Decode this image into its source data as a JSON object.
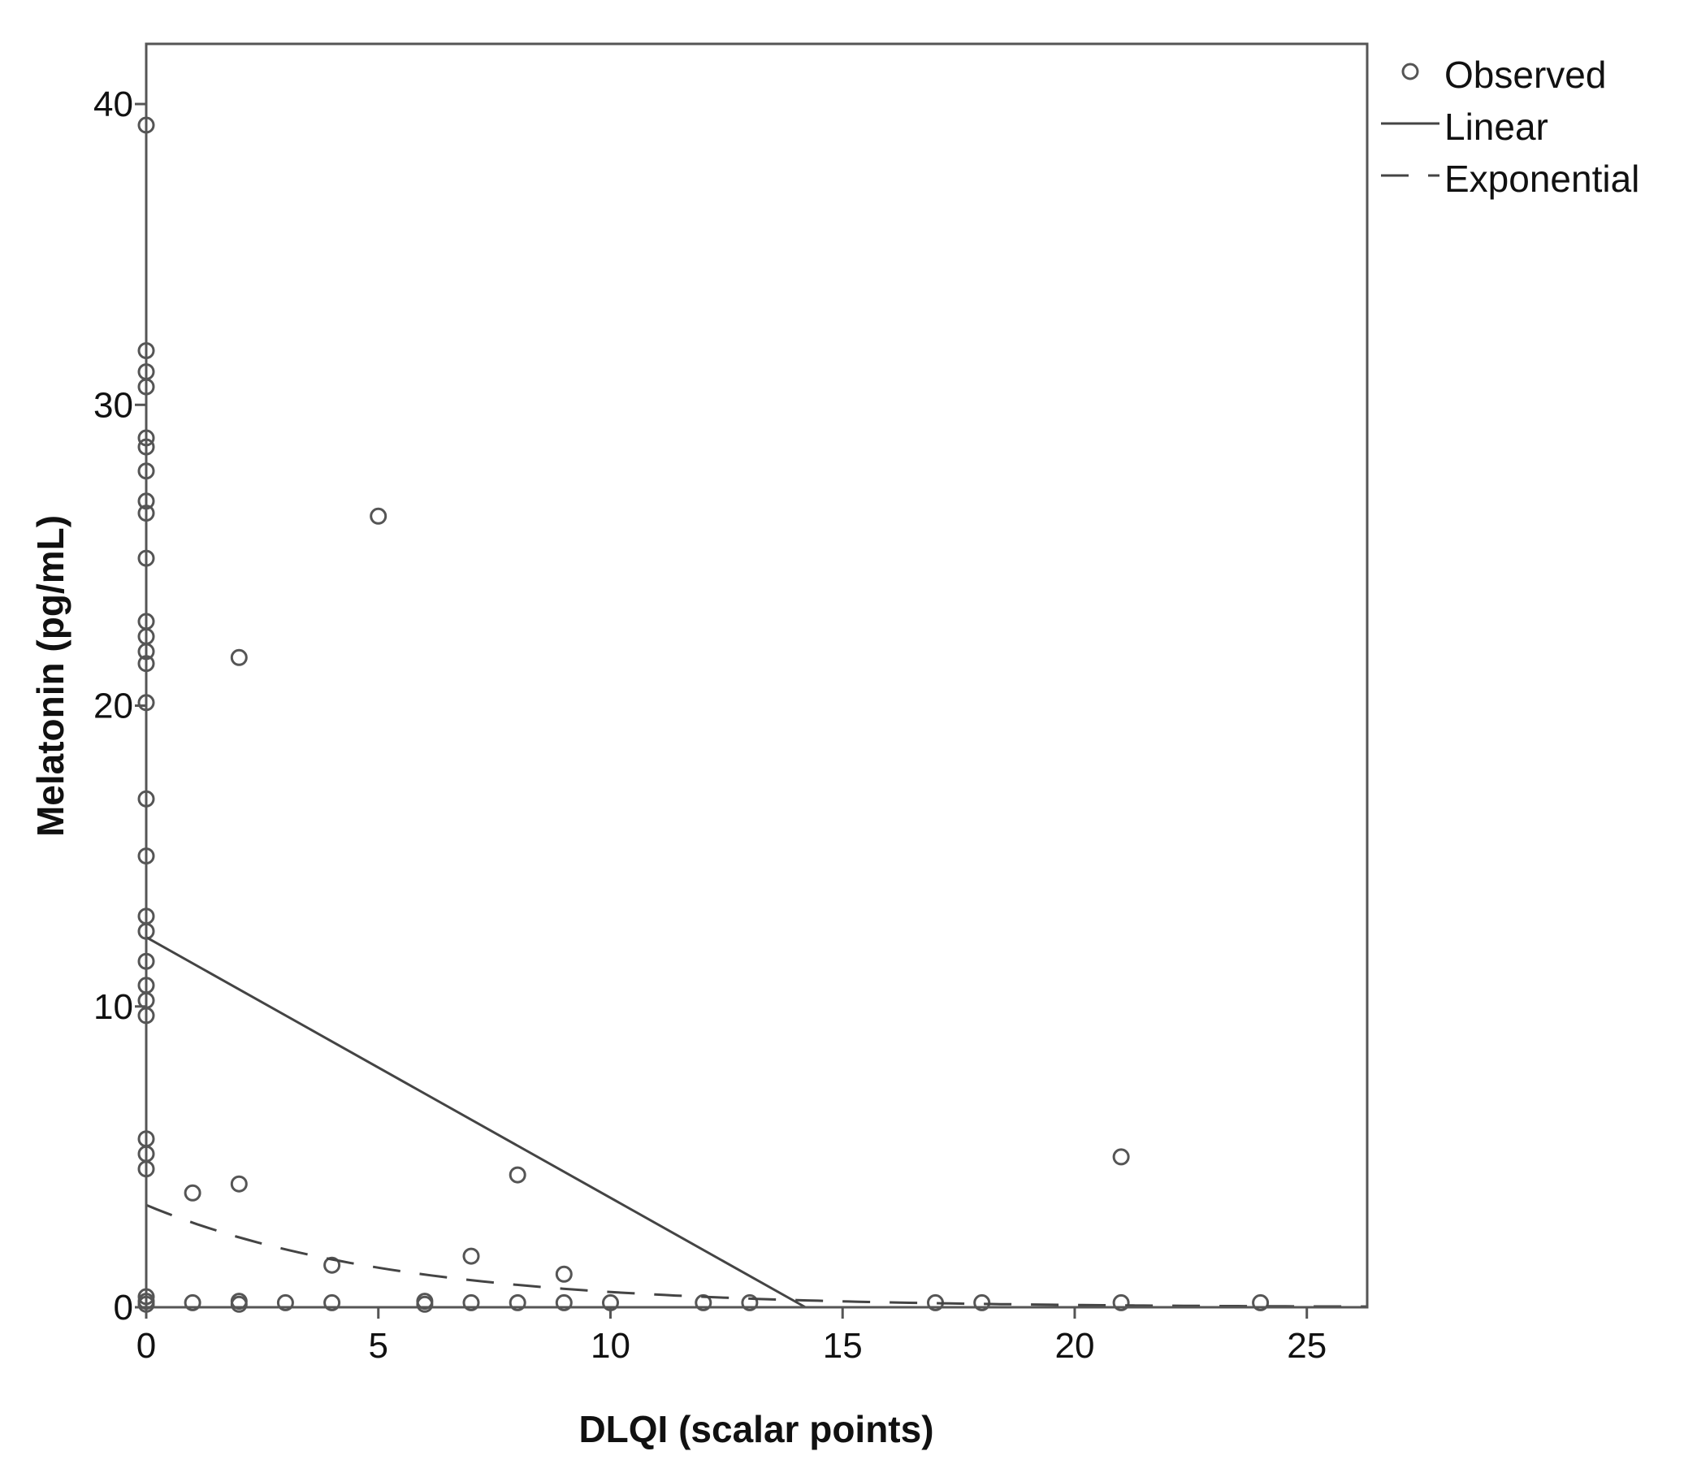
{
  "chart_data": {
    "type": "scatter",
    "xlabel": "DLQI (scalar points)",
    "ylabel": "Melatonin (pg/mL)",
    "xlim": [
      0,
      26.3
    ],
    "ylim": [
      0,
      42
    ],
    "xticks": [
      0,
      5,
      10,
      15,
      20,
      25
    ],
    "yticks": [
      0,
      10,
      20,
      30,
      40
    ],
    "grid": false,
    "legend_position": "outside-top-right",
    "legend": [
      "Observed",
      "Linear",
      "Exponential"
    ],
    "series": [
      {
        "name": "Observed",
        "kind": "points",
        "points": [
          [
            0,
            39.3
          ],
          [
            0,
            31.8
          ],
          [
            0,
            31.1
          ],
          [
            0,
            30.6
          ],
          [
            0,
            28.9
          ],
          [
            0,
            28.6
          ],
          [
            0,
            27.8
          ],
          [
            0,
            26.8
          ],
          [
            0,
            26.4
          ],
          [
            0,
            24.9
          ],
          [
            0,
            22.8
          ],
          [
            0,
            22.3
          ],
          [
            0,
            21.8
          ],
          [
            0,
            21.4
          ],
          [
            0,
            20.1
          ],
          [
            0,
            16.9
          ],
          [
            0,
            15.0
          ],
          [
            0,
            13.0
          ],
          [
            0,
            12.5
          ],
          [
            0,
            11.5
          ],
          [
            0,
            10.7
          ],
          [
            0,
            10.2
          ],
          [
            0,
            9.7
          ],
          [
            0,
            5.6
          ],
          [
            0,
            5.1
          ],
          [
            0,
            4.6
          ],
          [
            0,
            0.35
          ],
          [
            0,
            0.2
          ],
          [
            0,
            0.1
          ],
          [
            1,
            3.8
          ],
          [
            1,
            0.15
          ],
          [
            2,
            21.6
          ],
          [
            2,
            4.1
          ],
          [
            2,
            0.2
          ],
          [
            2,
            0.1
          ],
          [
            3,
            0.15
          ],
          [
            4,
            1.4
          ],
          [
            4,
            0.15
          ],
          [
            5,
            26.3
          ],
          [
            6,
            0.2
          ],
          [
            6,
            0.1
          ],
          [
            7,
            1.7
          ],
          [
            7,
            0.15
          ],
          [
            8,
            4.4
          ],
          [
            8,
            0.15
          ],
          [
            9,
            1.1
          ],
          [
            9,
            0.15
          ],
          [
            10,
            0.15
          ],
          [
            12,
            0.15
          ],
          [
            13,
            0.15
          ],
          [
            17,
            0.15
          ],
          [
            18,
            0.15
          ],
          [
            21,
            5.0
          ],
          [
            21,
            0.15
          ],
          [
            24,
            0.15
          ]
        ]
      },
      {
        "name": "Linear",
        "kind": "line",
        "points": [
          [
            0,
            12.3
          ],
          [
            14.2,
            0
          ]
        ]
      },
      {
        "name": "Exponential",
        "kind": "dashed-curve",
        "a": 3.4,
        "b": -0.19,
        "x_range": [
          0,
          26.3
        ]
      }
    ],
    "colors": {
      "markers": "#555555",
      "lines": "#444444",
      "frame": "#555555"
    }
  }
}
